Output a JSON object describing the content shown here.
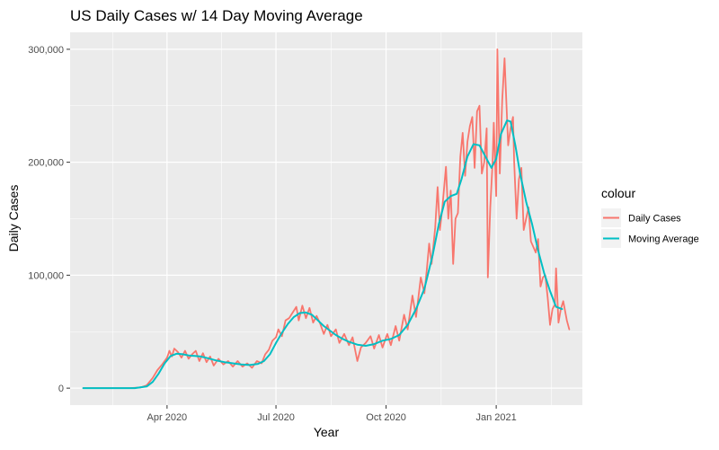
{
  "chart_data": {
    "type": "line",
    "title": "US Daily Cases w/ 14 Day Moving Average",
    "xlabel": "Year",
    "ylabel": "Daily Cases",
    "x_range": [
      "2020-01-22",
      "2021-03-03"
    ],
    "xlim": [
      "2020-01-11",
      "2021-03-14"
    ],
    "ylim": [
      -15000,
      315000
    ],
    "x_ticks": [
      {
        "date": "2020-04-01",
        "label": "Apr 2020"
      },
      {
        "date": "2020-07-01",
        "label": "Jul 2020"
      },
      {
        "date": "2020-10-01",
        "label": "Oct 2020"
      },
      {
        "date": "2021-01-01",
        "label": "Jan 2021"
      }
    ],
    "y_ticks": [
      {
        "value": 0,
        "label": "0"
      },
      {
        "value": 100000,
        "label": "100,000"
      },
      {
        "value": 200000,
        "label": "200,000"
      },
      {
        "value": 300000,
        "label": "300,000"
      }
    ],
    "grid": true,
    "panel_background": "#ebebeb",
    "legend": {
      "title": "colour",
      "position": "right",
      "entries": [
        {
          "label": "Daily Cases",
          "color": "#F8766D"
        },
        {
          "label": "Moving Average",
          "color": "#00BFC4"
        }
      ]
    },
    "series": [
      {
        "label": "Daily Cases",
        "color": "#F8766D",
        "points": [
          [
            "2020-01-22",
            0
          ],
          [
            "2020-03-01",
            0
          ],
          [
            "2020-03-10",
            700
          ],
          [
            "2020-03-15",
            2500
          ],
          [
            "2020-03-20",
            9000
          ],
          [
            "2020-03-24",
            16000
          ],
          [
            "2020-03-28",
            21000
          ],
          [
            "2020-04-01",
            27000
          ],
          [
            "2020-04-03",
            33000
          ],
          [
            "2020-04-05",
            28000
          ],
          [
            "2020-04-07",
            35000
          ],
          [
            "2020-04-10",
            32000
          ],
          [
            "2020-04-13",
            27000
          ],
          [
            "2020-04-16",
            33000
          ],
          [
            "2020-04-19",
            26000
          ],
          [
            "2020-04-22",
            30000
          ],
          [
            "2020-04-25",
            33000
          ],
          [
            "2020-04-28",
            24000
          ],
          [
            "2020-05-01",
            31000
          ],
          [
            "2020-05-04",
            23000
          ],
          [
            "2020-05-07",
            28000
          ],
          [
            "2020-05-10",
            20000
          ],
          [
            "2020-05-14",
            26000
          ],
          [
            "2020-05-18",
            21000
          ],
          [
            "2020-05-22",
            24000
          ],
          [
            "2020-05-26",
            19000
          ],
          [
            "2020-05-30",
            24000
          ],
          [
            "2020-06-03",
            19000
          ],
          [
            "2020-06-07",
            22000
          ],
          [
            "2020-06-11",
            18000
          ],
          [
            "2020-06-15",
            24000
          ],
          [
            "2020-06-19",
            22000
          ],
          [
            "2020-06-22",
            30000
          ],
          [
            "2020-06-25",
            34000
          ],
          [
            "2020-06-28",
            42000
          ],
          [
            "2020-07-01",
            45000
          ],
          [
            "2020-07-03",
            52000
          ],
          [
            "2020-07-06",
            46000
          ],
          [
            "2020-07-09",
            60000
          ],
          [
            "2020-07-12",
            62000
          ],
          [
            "2020-07-15",
            67000
          ],
          [
            "2020-07-18",
            72000
          ],
          [
            "2020-07-20",
            60000
          ],
          [
            "2020-07-23",
            73000
          ],
          [
            "2020-07-26",
            62000
          ],
          [
            "2020-07-29",
            71000
          ],
          [
            "2020-08-01",
            58000
          ],
          [
            "2020-08-04",
            64000
          ],
          [
            "2020-08-07",
            57000
          ],
          [
            "2020-08-10",
            48000
          ],
          [
            "2020-08-13",
            56000
          ],
          [
            "2020-08-16",
            46000
          ],
          [
            "2020-08-20",
            52000
          ],
          [
            "2020-08-23",
            40000
          ],
          [
            "2020-08-27",
            48000
          ],
          [
            "2020-08-31",
            38000
          ],
          [
            "2020-09-03",
            45000
          ],
          [
            "2020-09-07",
            24000
          ],
          [
            "2020-09-10",
            36000
          ],
          [
            "2020-09-14",
            40000
          ],
          [
            "2020-09-18",
            46000
          ],
          [
            "2020-09-21",
            35000
          ],
          [
            "2020-09-25",
            47000
          ],
          [
            "2020-09-28",
            36000
          ],
          [
            "2020-10-02",
            48000
          ],
          [
            "2020-10-05",
            38000
          ],
          [
            "2020-10-09",
            55000
          ],
          [
            "2020-10-12",
            42000
          ],
          [
            "2020-10-16",
            65000
          ],
          [
            "2020-10-19",
            52000
          ],
          [
            "2020-10-23",
            82000
          ],
          [
            "2020-10-26",
            63000
          ],
          [
            "2020-10-30",
            98000
          ],
          [
            "2020-11-02",
            84000
          ],
          [
            "2020-11-04",
            105000
          ],
          [
            "2020-11-06",
            128000
          ],
          [
            "2020-11-08",
            110000
          ],
          [
            "2020-11-11",
            142000
          ],
          [
            "2020-11-13",
            178000
          ],
          [
            "2020-11-15",
            140000
          ],
          [
            "2020-11-17",
            160000
          ],
          [
            "2020-11-20",
            196000
          ],
          [
            "2020-11-22",
            150000
          ],
          [
            "2020-11-24",
            175000
          ],
          [
            "2020-11-26",
            110000
          ],
          [
            "2020-11-28",
            150000
          ],
          [
            "2020-11-30",
            155000
          ],
          [
            "2020-12-02",
            205000
          ],
          [
            "2020-12-04",
            226000
          ],
          [
            "2020-12-06",
            188000
          ],
          [
            "2020-12-08",
            218000
          ],
          [
            "2020-12-10",
            232000
          ],
          [
            "2020-12-12",
            240000
          ],
          [
            "2020-12-14",
            195000
          ],
          [
            "2020-12-16",
            245000
          ],
          [
            "2020-12-18",
            250000
          ],
          [
            "2020-12-20",
            190000
          ],
          [
            "2020-12-22",
            200000
          ],
          [
            "2020-12-24",
            230000
          ],
          [
            "2020-12-25",
            98000
          ],
          [
            "2020-12-27",
            160000
          ],
          [
            "2020-12-29",
            200000
          ],
          [
            "2020-12-30",
            235000
          ],
          [
            "2021-01-01",
            170000
          ],
          [
            "2021-01-02",
            300000
          ],
          [
            "2021-01-04",
            190000
          ],
          [
            "2021-01-06",
            255000
          ],
          [
            "2021-01-08",
            292000
          ],
          [
            "2021-01-09",
            265000
          ],
          [
            "2021-01-11",
            215000
          ],
          [
            "2021-01-13",
            230000
          ],
          [
            "2021-01-15",
            240000
          ],
          [
            "2021-01-16",
            200000
          ],
          [
            "2021-01-18",
            150000
          ],
          [
            "2021-01-20",
            185000
          ],
          [
            "2021-01-22",
            195000
          ],
          [
            "2021-01-24",
            140000
          ],
          [
            "2021-01-26",
            150000
          ],
          [
            "2021-01-28",
            160000
          ],
          [
            "2021-01-30",
            130000
          ],
          [
            "2021-02-01",
            125000
          ],
          [
            "2021-02-03",
            120000
          ],
          [
            "2021-02-05",
            132000
          ],
          [
            "2021-02-07",
            90000
          ],
          [
            "2021-02-09",
            98000
          ],
          [
            "2021-02-11",
            100000
          ],
          [
            "2021-02-13",
            80000
          ],
          [
            "2021-02-15",
            56000
          ],
          [
            "2021-02-17",
            70000
          ],
          [
            "2021-02-19",
            74000
          ],
          [
            "2021-02-20",
            106000
          ],
          [
            "2021-02-22",
            58000
          ],
          [
            "2021-02-24",
            70000
          ],
          [
            "2021-02-26",
            77000
          ],
          [
            "2021-03-01",
            60000
          ],
          [
            "2021-03-03",
            52000
          ]
        ]
      },
      {
        "label": "Moving Average",
        "color": "#00BFC4",
        "points": [
          [
            "2020-01-22",
            0
          ],
          [
            "2020-03-05",
            0
          ],
          [
            "2020-03-15",
            1500
          ],
          [
            "2020-03-20",
            5500
          ],
          [
            "2020-03-25",
            13000
          ],
          [
            "2020-03-30",
            22000
          ],
          [
            "2020-04-04",
            28500
          ],
          [
            "2020-04-09",
            30500
          ],
          [
            "2020-04-14",
            30000
          ],
          [
            "2020-04-19",
            29000
          ],
          [
            "2020-04-24",
            28500
          ],
          [
            "2020-04-29",
            28000
          ],
          [
            "2020-05-05",
            26500
          ],
          [
            "2020-05-12",
            24500
          ],
          [
            "2020-05-19",
            23000
          ],
          [
            "2020-05-26",
            22000
          ],
          [
            "2020-06-02",
            21000
          ],
          [
            "2020-06-09",
            20500
          ],
          [
            "2020-06-16",
            21500
          ],
          [
            "2020-06-21",
            24000
          ],
          [
            "2020-06-26",
            30000
          ],
          [
            "2020-07-01",
            40000
          ],
          [
            "2020-07-06",
            49000
          ],
          [
            "2020-07-11",
            57000
          ],
          [
            "2020-07-16",
            63000
          ],
          [
            "2020-07-21",
            66500
          ],
          [
            "2020-07-26",
            67000
          ],
          [
            "2020-07-31",
            65000
          ],
          [
            "2020-08-05",
            60000
          ],
          [
            "2020-08-10",
            55000
          ],
          [
            "2020-08-15",
            51000
          ],
          [
            "2020-08-20",
            47000
          ],
          [
            "2020-08-25",
            44000
          ],
          [
            "2020-08-31",
            41000
          ],
          [
            "2020-09-07",
            38500
          ],
          [
            "2020-09-14",
            37500
          ],
          [
            "2020-09-21",
            39000
          ],
          [
            "2020-09-28",
            42000
          ],
          [
            "2020-10-05",
            43500
          ],
          [
            "2020-10-12",
            47000
          ],
          [
            "2020-10-19",
            56000
          ],
          [
            "2020-10-26",
            70000
          ],
          [
            "2020-11-02",
            88000
          ],
          [
            "2020-11-09",
            118000
          ],
          [
            "2020-11-14",
            145000
          ],
          [
            "2020-11-19",
            165000
          ],
          [
            "2020-11-24",
            170000
          ],
          [
            "2020-11-29",
            172000
          ],
          [
            "2020-12-03",
            185000
          ],
          [
            "2020-12-08",
            205000
          ],
          [
            "2020-12-13",
            216000
          ],
          [
            "2020-12-18",
            215000
          ],
          [
            "2020-12-23",
            205000
          ],
          [
            "2020-12-28",
            195000
          ],
          [
            "2021-01-01",
            203000
          ],
          [
            "2021-01-05",
            225000
          ],
          [
            "2021-01-10",
            237000
          ],
          [
            "2021-01-13",
            236000
          ],
          [
            "2021-01-17",
            215000
          ],
          [
            "2021-01-21",
            190000
          ],
          [
            "2021-01-26",
            165000
          ],
          [
            "2021-01-31",
            145000
          ],
          [
            "2021-02-05",
            122000
          ],
          [
            "2021-02-10",
            102000
          ],
          [
            "2021-02-15",
            86000
          ],
          [
            "2021-02-20",
            72000
          ],
          [
            "2021-02-25",
            70000
          ]
        ]
      }
    ]
  }
}
